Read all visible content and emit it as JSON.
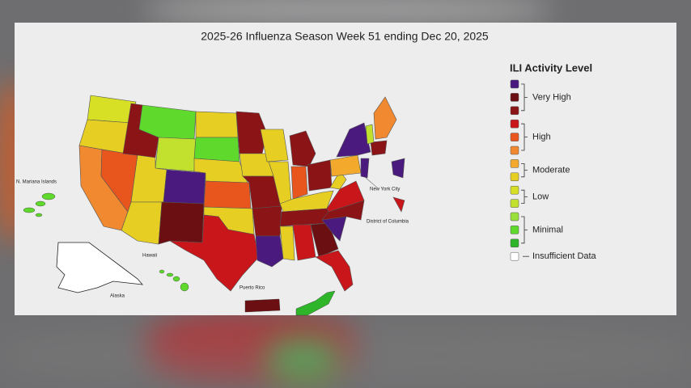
{
  "title": "2025-26 Influenza Season Week 51 ending Dec 20, 2025",
  "legend": {
    "title": "ILI Activity Level",
    "groups": [
      {
        "label": "Very High",
        "colors": [
          "#4b1a7f",
          "#6b0f12",
          "#8b1417"
        ]
      },
      {
        "label": "High",
        "colors": [
          "#c8161b",
          "#e8561e",
          "#f0892f"
        ]
      },
      {
        "label": "Moderate",
        "colors": [
          "#f2a92c",
          "#e6cf22"
        ]
      },
      {
        "label": "Low",
        "colors": [
          "#d8e026",
          "#c2e02e"
        ]
      },
      {
        "label": "Minimal",
        "colors": [
          "#9ae03a",
          "#5fd92b",
          "#2fb52a"
        ]
      },
      {
        "label": "Insufficient Data",
        "colors": [
          "#ffffff"
        ]
      }
    ]
  },
  "map_labels": [
    "N. Mariana Islands",
    "New York City",
    "District of Columbia",
    "Hawaii",
    "Alaska",
    "Puerto Rico"
  ]
}
